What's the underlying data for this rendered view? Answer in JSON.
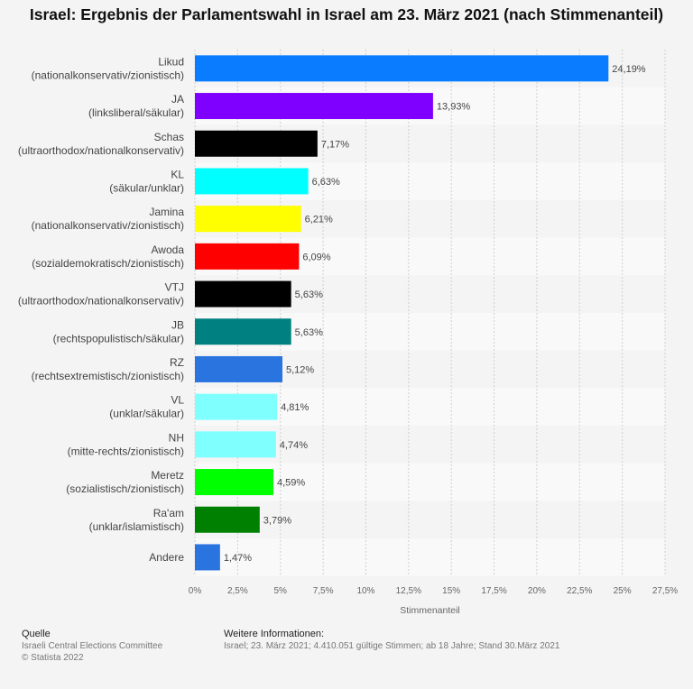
{
  "title": "Israel: Ergebnis der Parlamentswahl in Israel am 23. März 2021 (nach Stimmenanteil)",
  "chart_data": {
    "type": "bar",
    "orientation": "horizontal",
    "categories": [
      [
        "Likud",
        "(nationalkonservativ/zionistisch)"
      ],
      [
        "JA",
        "(linksliberal/säkular)"
      ],
      [
        "Schas",
        "(ultraorthodox/nationalkonservativ)"
      ],
      [
        "KL",
        "(säkular/unklar)"
      ],
      [
        "Jamina",
        "(nationalkonservativ/zionistisch)"
      ],
      [
        "Awoda",
        "(sozialdemokratisch/zionistisch)"
      ],
      [
        "VTJ",
        "(ultraorthodox/nationalkonservativ)"
      ],
      [
        "JB",
        "(rechtspopulistisch/säkular)"
      ],
      [
        "RZ",
        "(rechtsextremistisch/zionistisch)"
      ],
      [
        "VL",
        "(unklar/säkular)"
      ],
      [
        "NH",
        "(mitte-rechts/zionistisch)"
      ],
      [
        "Meretz",
        "(sozialistisch/zionistisch)"
      ],
      [
        "Ra'am",
        "(unklar/islamistisch)"
      ],
      [
        "Andere"
      ]
    ],
    "values": [
      24.19,
      13.93,
      7.17,
      6.63,
      6.21,
      6.09,
      5.63,
      5.63,
      5.12,
      4.81,
      4.74,
      4.59,
      3.79,
      1.47
    ],
    "value_labels": [
      "24,19%",
      "13,93%",
      "7,17%",
      "6,63%",
      "6,21%",
      "6,09%",
      "5,63%",
      "5,63%",
      "5,12%",
      "4,81%",
      "4,74%",
      "4,59%",
      "3,79%",
      "1,47%"
    ],
    "colors": [
      "#0a7cff",
      "#7f00ff",
      "#000000",
      "#00ffff",
      "#ffff00",
      "#ff0000",
      "#000000",
      "#008080",
      "#2a74e0",
      "#80ffff",
      "#80ffff",
      "#00ff00",
      "#008000",
      "#2a74e0"
    ],
    "xlim": [
      0,
      27.5
    ],
    "xticks": [
      0,
      2.5,
      5,
      7.5,
      10,
      12.5,
      15,
      17.5,
      20,
      22.5,
      25,
      27.5
    ],
    "xtick_labels": [
      "0%",
      "2,5%",
      "5%",
      "7,5%",
      "10%",
      "12,5%",
      "15%",
      "17,5%",
      "20%",
      "22,5%",
      "25%",
      "27,5%"
    ],
    "xlabel": "Stimmenanteil",
    "grid": true
  },
  "footer": {
    "source_heading": "Quelle",
    "source_lines": [
      "Israeli Central Elections Committee",
      "© Statista 2022"
    ],
    "info_heading": "Weitere Informationen:",
    "info_text": "Israel; 23. März 2021; 4.410.051 gültige Stimmen; ab 18 Jahre; Stand 30.März 2021"
  }
}
